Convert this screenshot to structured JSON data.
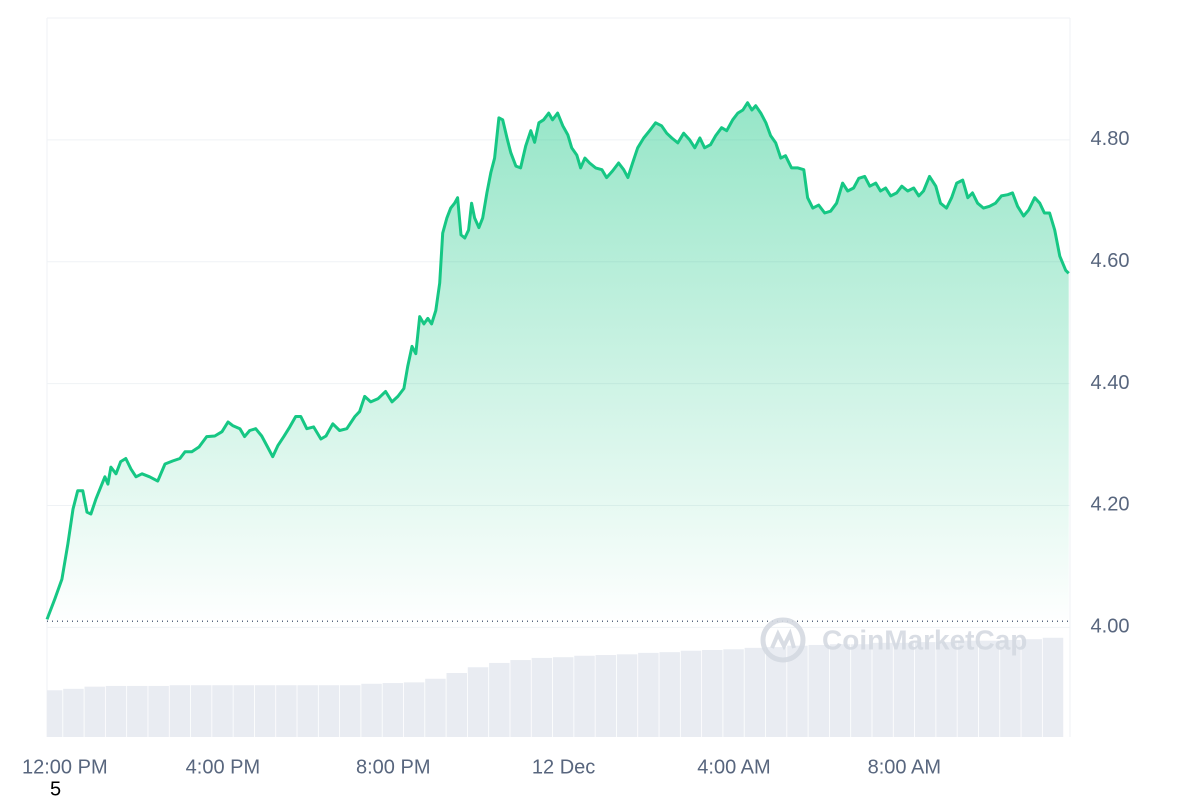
{
  "chart_data": {
    "type": "area",
    "watermark": "CoinMarketCap",
    "footnote": "5",
    "xlim": [
      -0.13,
      23.89
    ],
    "xticks": [
      {
        "value": 0,
        "label": "12:00 PM"
      },
      {
        "value": 4,
        "label": "4:00 PM"
      },
      {
        "value": 8,
        "label": "8:00 PM"
      },
      {
        "value": 12,
        "label": "12 Dec"
      },
      {
        "value": 16,
        "label": "4:00 AM"
      },
      {
        "value": 20,
        "label": "8:00 AM"
      }
    ],
    "ylim": [
      3.82,
      5.0
    ],
    "yticks": [
      {
        "value": 4,
        "label": "4.00"
      },
      {
        "value": 4.2,
        "label": "4.20"
      },
      {
        "value": 4.4,
        "label": "4.40"
      },
      {
        "value": 4.6,
        "label": "4.60"
      },
      {
        "value": 4.8,
        "label": "4.80"
      }
    ],
    "y2lim": [
      0,
      100
    ],
    "grid": true,
    "baseline": 4.01,
    "x": [
      -0.13,
      0.05,
      0.22,
      0.36,
      0.48,
      0.59,
      0.71,
      0.81,
      0.9,
      1.02,
      1.13,
      1.23,
      1.3,
      1.37,
      1.49,
      1.6,
      1.72,
      1.84,
      1.96,
      2.1,
      2.28,
      2.47,
      2.64,
      2.82,
      2.99,
      3.11,
      3.27,
      3.44,
      3.62,
      3.81,
      3.98,
      4.12,
      4.23,
      4.4,
      4.51,
      4.63,
      4.77,
      4.91,
      5.05,
      5.17,
      5.29,
      5.43,
      5.57,
      5.71,
      5.83,
      5.97,
      6.13,
      6.3,
      6.42,
      6.58,
      6.74,
      6.91,
      7.1,
      7.21,
      7.33,
      7.47,
      7.64,
      7.82,
      7.97,
      8.11,
      8.25,
      8.34,
      8.44,
      8.53,
      8.62,
      8.72,
      8.81,
      8.9,
      9.0,
      9.09,
      9.16,
      9.26,
      9.35,
      9.44,
      9.51,
      9.59,
      9.68,
      9.77,
      9.84,
      9.91,
      10.01,
      10.1,
      10.2,
      10.29,
      10.38,
      10.48,
      10.57,
      10.67,
      10.76,
      10.88,
      10.99,
      11.11,
      11.23,
      11.32,
      11.42,
      11.53,
      11.65,
      11.74,
      11.86,
      11.98,
      12.1,
      12.19,
      12.31,
      12.4,
      12.5,
      12.61,
      12.75,
      12.9,
      13.01,
      13.15,
      13.29,
      13.41,
      13.51,
      13.62,
      13.74,
      13.88,
      14.02,
      14.16,
      14.3,
      14.42,
      14.54,
      14.68,
      14.82,
      14.96,
      15.08,
      15.2,
      15.31,
      15.45,
      15.57,
      15.71,
      15.83,
      15.97,
      16.09,
      16.21,
      16.32,
      16.42,
      16.51,
      16.63,
      16.75,
      16.86,
      16.98,
      17.1,
      17.21,
      17.35,
      17.5,
      17.64,
      17.73,
      17.85,
      17.99,
      18.13,
      18.27,
      18.41,
      18.55,
      18.67,
      18.81,
      18.93,
      19.07,
      19.19,
      19.33,
      19.44,
      19.56,
      19.68,
      19.82,
      19.94,
      20.08,
      20.22,
      20.34,
      20.45,
      20.59,
      20.74,
      20.85,
      20.99,
      21.11,
      21.23,
      21.37,
      21.49,
      21.6,
      21.72,
      21.86,
      22.0,
      22.14,
      22.28,
      22.43,
      22.54,
      22.66,
      22.8,
      22.92,
      23.06,
      23.18,
      23.29,
      23.41,
      23.53,
      23.65,
      23.79,
      23.86
    ],
    "series": [
      {
        "color": "#16c784",
        "values": [
          4.013,
          4.046,
          4.079,
          4.137,
          4.194,
          4.224,
          4.224,
          4.189,
          4.186,
          4.211,
          4.23,
          4.247,
          4.235,
          4.263,
          4.252,
          4.272,
          4.277,
          4.26,
          4.247,
          4.252,
          4.247,
          4.24,
          4.268,
          4.273,
          4.277,
          4.288,
          4.288,
          4.296,
          4.313,
          4.314,
          4.321,
          4.337,
          4.331,
          4.326,
          4.313,
          4.323,
          4.326,
          4.314,
          4.296,
          4.28,
          4.298,
          4.313,
          4.329,
          4.346,
          4.346,
          4.326,
          4.329,
          4.309,
          4.314,
          4.334,
          4.323,
          4.326,
          4.346,
          4.354,
          4.379,
          4.37,
          4.375,
          4.387,
          4.37,
          4.379,
          4.392,
          4.428,
          4.461,
          4.449,
          4.51,
          4.498,
          4.507,
          4.498,
          4.52,
          4.565,
          4.647,
          4.672,
          4.688,
          4.696,
          4.705,
          4.644,
          4.639,
          4.652,
          4.696,
          4.672,
          4.656,
          4.672,
          4.713,
          4.746,
          4.77,
          4.836,
          4.833,
          4.803,
          4.779,
          4.757,
          4.754,
          4.79,
          4.815,
          4.796,
          4.828,
          4.833,
          4.844,
          4.833,
          4.844,
          4.823,
          4.808,
          4.787,
          4.775,
          4.754,
          4.77,
          4.762,
          4.754,
          4.751,
          4.738,
          4.749,
          4.762,
          4.751,
          4.738,
          4.762,
          4.787,
          4.803,
          4.815,
          4.828,
          4.823,
          4.811,
          4.803,
          4.795,
          4.811,
          4.8,
          4.787,
          4.803,
          4.787,
          4.792,
          4.807,
          4.82,
          4.815,
          4.833,
          4.844,
          4.849,
          4.861,
          4.849,
          4.856,
          4.844,
          4.828,
          4.807,
          4.795,
          4.77,
          4.774,
          4.754,
          4.754,
          4.751,
          4.705,
          4.688,
          4.693,
          4.68,
          4.683,
          4.696,
          4.729,
          4.716,
          4.721,
          4.737,
          4.74,
          4.724,
          4.729,
          4.716,
          4.721,
          4.708,
          4.713,
          4.724,
          4.716,
          4.721,
          4.708,
          4.716,
          4.74,
          4.724,
          4.696,
          4.688,
          4.705,
          4.729,
          4.734,
          4.705,
          4.713,
          4.696,
          4.688,
          4.691,
          4.696,
          4.708,
          4.71,
          4.713,
          4.691,
          4.675,
          4.685,
          4.705,
          4.696,
          4.68,
          4.68,
          4.652,
          4.609,
          4.586,
          4.581
        ]
      },
      {
        "axis": "y2",
        "type": "bar",
        "color": "#e9ecf2",
        "x": [
          0,
          0.5,
          1,
          1.5,
          2,
          2.5,
          3,
          3.5,
          4,
          4.5,
          5,
          5.5,
          6,
          6.5,
          7,
          7.5,
          8,
          8.5,
          9,
          9.5,
          10,
          10.5,
          11,
          11.5,
          12,
          12.5,
          13,
          13.5,
          14,
          14.5,
          15,
          15.5,
          16,
          16.5,
          17,
          17.5,
          18,
          18.5,
          19,
          19.5,
          20,
          20.5,
          21,
          21.5,
          22,
          22.5,
          23,
          23.5
        ],
        "values": [
          6.5,
          6.7,
          7.0,
          7.1,
          7.1,
          7.1,
          7.2,
          7.2,
          7.2,
          7.2,
          7.2,
          7.2,
          7.2,
          7.2,
          7.2,
          7.4,
          7.5,
          7.6,
          8.1,
          8.9,
          9.7,
          10.3,
          10.7,
          11.0,
          11.1,
          11.3,
          11.4,
          11.5,
          11.7,
          11.8,
          12.0,
          12.1,
          12.2,
          12.4,
          12.5,
          12.7,
          12.8,
          12.9,
          12.9,
          13.1,
          13.1,
          13.2,
          13.2,
          13.4,
          13.4,
          13.5,
          13.6,
          13.8
        ]
      }
    ]
  }
}
